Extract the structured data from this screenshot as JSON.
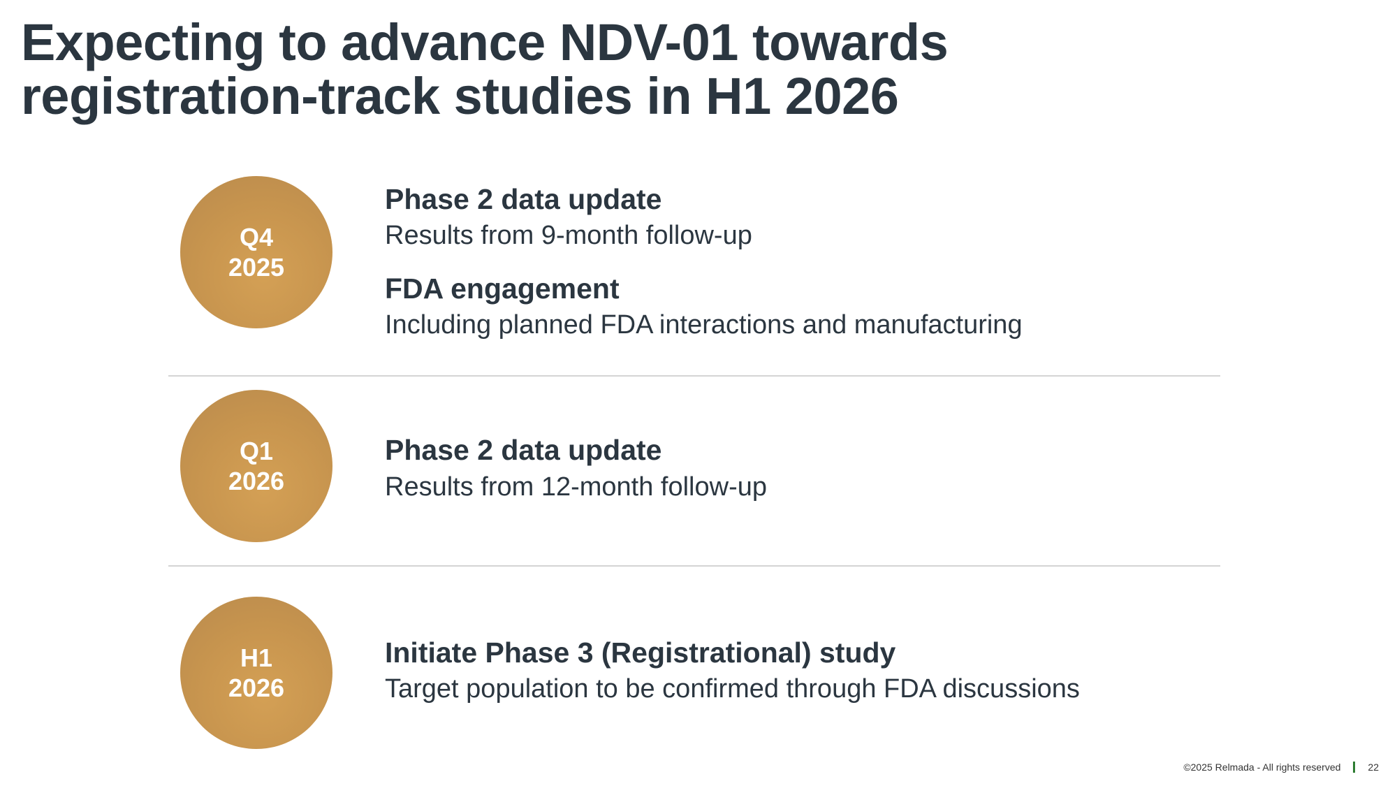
{
  "title_line1": "Expecting to advance NDV-01 towards",
  "title_line2": "registration-track studies in H1 2026",
  "milestones": [
    {
      "period": "Q4",
      "year": "2025",
      "items": [
        {
          "heading": "Phase 2 data update",
          "desc": "Results from 9-month follow-up"
        },
        {
          "heading": "FDA engagement",
          "desc": "Including planned FDA interactions and manufacturing"
        }
      ]
    },
    {
      "period": "Q1",
      "year": "2026",
      "items": [
        {
          "heading": "Phase 2 data update",
          "desc": "Results from 12-month follow-up"
        }
      ]
    },
    {
      "period": "H1",
      "year": "2026",
      "items": [
        {
          "heading": "Initiate Phase 3 (Registrational) study",
          "desc": "Target population to be confirmed through FDA discussions"
        }
      ]
    }
  ],
  "footer": {
    "copyright": "©2025 Relmada - All rights reserved",
    "page": "22"
  },
  "colors": {
    "accent": "#c9964f",
    "text": "#2b3640",
    "divider": "#2e7d32"
  }
}
